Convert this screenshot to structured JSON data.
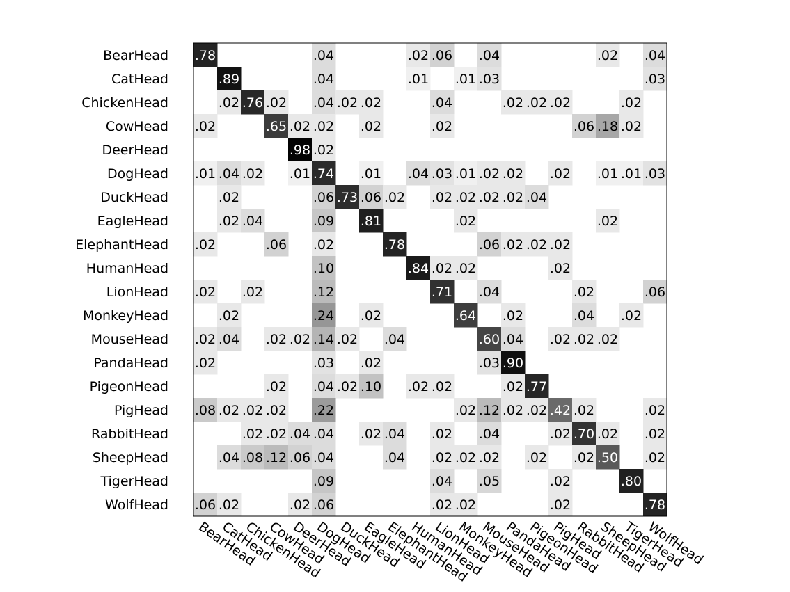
{
  "chart_data": {
    "type": "heatmap",
    "title": "",
    "xlabel": "",
    "ylabel": "",
    "categories": [
      "BearHead",
      "CatHead",
      "ChickenHead",
      "CowHead",
      "DeerHead",
      "DogHead",
      "DuckHead",
      "EagleHead",
      "ElephantHead",
      "HumanHead",
      "LionHead",
      "MonkeyHead",
      "MouseHead",
      "PandaHead",
      "PigeonHead",
      "PigHead",
      "RabbitHead",
      "SheepHead",
      "TigerHead",
      "WolfHead"
    ],
    "value_range": [
      0,
      1
    ],
    "colormap": "gray_reversed",
    "matrix": [
      [
        0.78,
        0,
        0,
        0,
        0,
        0.04,
        0,
        0,
        0,
        0.02,
        0.06,
        0,
        0.04,
        0,
        0,
        0,
        0,
        0.02,
        0,
        0.04
      ],
      [
        0,
        0.89,
        0,
        0,
        0,
        0.04,
        0,
        0,
        0,
        0.01,
        0,
        0.01,
        0.03,
        0,
        0,
        0,
        0,
        0,
        0,
        0.03
      ],
      [
        0,
        0.02,
        0.76,
        0.02,
        0,
        0.04,
        0.02,
        0.02,
        0,
        0,
        0.04,
        0,
        0,
        0.02,
        0.02,
        0.02,
        0,
        0,
        0.02,
        0
      ],
      [
        0.02,
        0,
        0,
        0.65,
        0.02,
        0.02,
        0,
        0.02,
        0,
        0,
        0.02,
        0,
        0,
        0,
        0,
        0,
        0.06,
        0.18,
        0.02,
        0
      ],
      [
        0,
        0,
        0,
        0,
        0.98,
        0.02,
        0,
        0,
        0,
        0,
        0,
        0,
        0,
        0,
        0,
        0,
        0,
        0,
        0,
        0
      ],
      [
        0.01,
        0.04,
        0.02,
        0,
        0.01,
        0.74,
        0,
        0.01,
        0,
        0.04,
        0.03,
        0.01,
        0.02,
        0.02,
        0,
        0.02,
        0,
        0.01,
        0.01,
        0.03
      ],
      [
        0,
        0.02,
        0,
        0,
        0,
        0.06,
        0.73,
        0.06,
        0.02,
        0,
        0.02,
        0.02,
        0.02,
        0.02,
        0.04,
        0,
        0,
        0,
        0,
        0
      ],
      [
        0,
        0.02,
        0.04,
        0,
        0,
        0.09,
        0,
        0.81,
        0,
        0,
        0,
        0.02,
        0,
        0,
        0,
        0,
        0,
        0.02,
        0,
        0
      ],
      [
        0.02,
        0,
        0,
        0.06,
        0,
        0.02,
        0,
        0,
        0.78,
        0,
        0,
        0,
        0.06,
        0.02,
        0.02,
        0.02,
        0,
        0,
        0,
        0
      ],
      [
        0,
        0,
        0,
        0,
        0,
        0.1,
        0,
        0,
        0,
        0.84,
        0.02,
        0.02,
        0,
        0,
        0,
        0.02,
        0,
        0,
        0,
        0
      ],
      [
        0.02,
        0,
        0.02,
        0,
        0,
        0.12,
        0,
        0,
        0,
        0,
        0.71,
        0,
        0.04,
        0,
        0,
        0,
        0.02,
        0,
        0,
        0.06
      ],
      [
        0,
        0.02,
        0,
        0,
        0,
        0.24,
        0,
        0.02,
        0,
        0,
        0,
        0.64,
        0,
        0.02,
        0,
        0,
        0.04,
        0,
        0.02,
        0
      ],
      [
        0.02,
        0.04,
        0,
        0.02,
        0.02,
        0.14,
        0.02,
        0,
        0.04,
        0,
        0,
        0,
        0.6,
        0.04,
        0,
        0.02,
        0.02,
        0.02,
        0,
        0
      ],
      [
        0.02,
        0,
        0,
        0,
        0,
        0.03,
        0,
        0.02,
        0,
        0,
        0,
        0,
        0.03,
        0.9,
        0,
        0,
        0,
        0,
        0,
        0
      ],
      [
        0,
        0,
        0,
        0.02,
        0,
        0.04,
        0.02,
        0.1,
        0,
        0.02,
        0.02,
        0,
        0,
        0.02,
        0.77,
        0,
        0,
        0,
        0,
        0
      ],
      [
        0.08,
        0.02,
        0.02,
        0.02,
        0,
        0.22,
        0,
        0,
        0,
        0,
        0,
        0.02,
        0.12,
        0.02,
        0.02,
        0.42,
        0.02,
        0,
        0,
        0.02
      ],
      [
        0,
        0,
        0.02,
        0.02,
        0.04,
        0.04,
        0,
        0.02,
        0.04,
        0,
        0.02,
        0,
        0.04,
        0,
        0,
        0.02,
        0.7,
        0.02,
        0,
        0.02
      ],
      [
        0,
        0.04,
        0.08,
        0.12,
        0.06,
        0.04,
        0,
        0,
        0.04,
        0,
        0.02,
        0.02,
        0.02,
        0,
        0.02,
        0,
        0.02,
        0.5,
        0,
        0.02
      ],
      [
        0,
        0,
        0,
        0,
        0,
        0.09,
        0,
        0,
        0,
        0,
        0.04,
        0,
        0.05,
        0,
        0,
        0.02,
        0,
        0,
        0.8,
        0
      ],
      [
        0.06,
        0.02,
        0,
        0,
        0.02,
        0.06,
        0,
        0,
        0,
        0,
        0.02,
        0.02,
        0,
        0,
        0,
        0.02,
        0,
        0,
        0,
        0.78
      ]
    ],
    "labels": [
      [
        "78",
        "",
        "",
        "",
        "",
        "04",
        "",
        "",
        "",
        "02",
        "06",
        "",
        "04",
        "",
        "",
        "",
        "",
        "02",
        "",
        "04"
      ],
      [
        "",
        "89",
        "",
        "",
        "",
        "04",
        "",
        "",
        "",
        "01",
        "",
        "01",
        "03",
        "",
        "",
        "",
        "",
        "",
        "",
        "03"
      ],
      [
        "",
        "02",
        "76",
        "02",
        "",
        "04",
        "02",
        "02",
        "",
        "",
        "04",
        "",
        "",
        "02",
        "02",
        "02",
        "",
        "",
        "02",
        ""
      ],
      [
        "02",
        "",
        "",
        "65",
        "02",
        "02",
        "",
        "02",
        "",
        "",
        "02",
        "",
        "",
        "",
        "",
        "",
        "06",
        "18",
        "02",
        ""
      ],
      [
        "",
        "",
        "",
        "",
        "98",
        "02",
        "",
        "",
        "",
        "",
        "",
        "",
        "",
        "",
        "",
        "",
        "",
        "",
        "",
        ""
      ],
      [
        "01",
        "04",
        "02",
        "",
        "01",
        "74",
        "",
        "01",
        "",
        "04",
        "03",
        "01",
        "02",
        "02",
        "",
        "02",
        "",
        "01",
        "01",
        "03"
      ],
      [
        "",
        "02",
        "",
        "",
        "",
        "06",
        "73",
        "06",
        "02",
        "",
        "02",
        "02",
        "02",
        "02",
        "04",
        "",
        "",
        "",
        "",
        ""
      ],
      [
        "",
        "02",
        "04",
        "",
        "",
        "09",
        "",
        "81",
        "",
        "",
        "",
        "02",
        "",
        "",
        "",
        "",
        "",
        "02",
        "",
        ""
      ],
      [
        "02",
        "",
        "",
        "06",
        "",
        "02",
        "",
        "",
        "78",
        "",
        "",
        "",
        "06",
        "02",
        "02",
        "02",
        "",
        "",
        "",
        ""
      ],
      [
        "",
        "",
        "",
        "",
        "",
        "10",
        "",
        "",
        "",
        "84",
        "02",
        "02",
        "",
        "",
        "",
        "02",
        "",
        "",
        "",
        ""
      ],
      [
        "02",
        "",
        "02",
        "",
        "",
        "12",
        "",
        "",
        "",
        "",
        "71",
        "",
        "04",
        "",
        "",
        "",
        "02",
        "",
        "",
        "06"
      ],
      [
        "",
        "02",
        "",
        "",
        "",
        "24",
        "",
        "02",
        "",
        "",
        "",
        "64",
        "",
        "02",
        "",
        "",
        "04",
        "",
        "02",
        ""
      ],
      [
        "02",
        "04",
        "",
        "02",
        "02",
        "14",
        "02",
        "",
        "04",
        "",
        "",
        "",
        "60",
        "04",
        "",
        "02",
        "02",
        "02",
        "",
        ""
      ],
      [
        "02",
        "",
        "",
        "",
        "",
        "03",
        "",
        "02",
        "",
        "",
        "",
        "",
        "03",
        "90",
        "",
        "",
        "",
        "",
        "",
        ""
      ],
      [
        "",
        "",
        "",
        "02",
        "",
        "04",
        "02",
        "10",
        "",
        "02",
        "02",
        "",
        "",
        "02",
        "77",
        "",
        "",
        "",
        "",
        ""
      ],
      [
        "08",
        "02",
        "02",
        "02",
        "",
        "22",
        "",
        "",
        "",
        "",
        "",
        "02",
        "12",
        "02",
        "02",
        "42",
        "02",
        "",
        "",
        "02"
      ],
      [
        "",
        "",
        "02",
        "02",
        "04",
        "04",
        "",
        "02",
        "04",
        "",
        "02",
        "",
        "04",
        "",
        "",
        "02",
        "70",
        "02",
        "",
        "02"
      ],
      [
        "",
        "04",
        "08",
        "12",
        "06",
        "04",
        "",
        "",
        "04",
        "",
        "02",
        "02",
        "02",
        "",
        "02",
        "",
        "02",
        "50",
        "",
        "02"
      ],
      [
        "",
        "",
        "",
        "",
        "",
        "09",
        "",
        "",
        "",
        "",
        "04",
        "",
        "05",
        "",
        "",
        "02",
        "",
        "",
        "80",
        ""
      ],
      [
        "06",
        "02",
        "",
        "",
        "02",
        "06",
        "",
        "",
        "",
        "",
        "02",
        "02",
        "",
        "",
        "",
        "02",
        "",
        "",
        "",
        "78"
      ]
    ],
    "grid": false
  }
}
